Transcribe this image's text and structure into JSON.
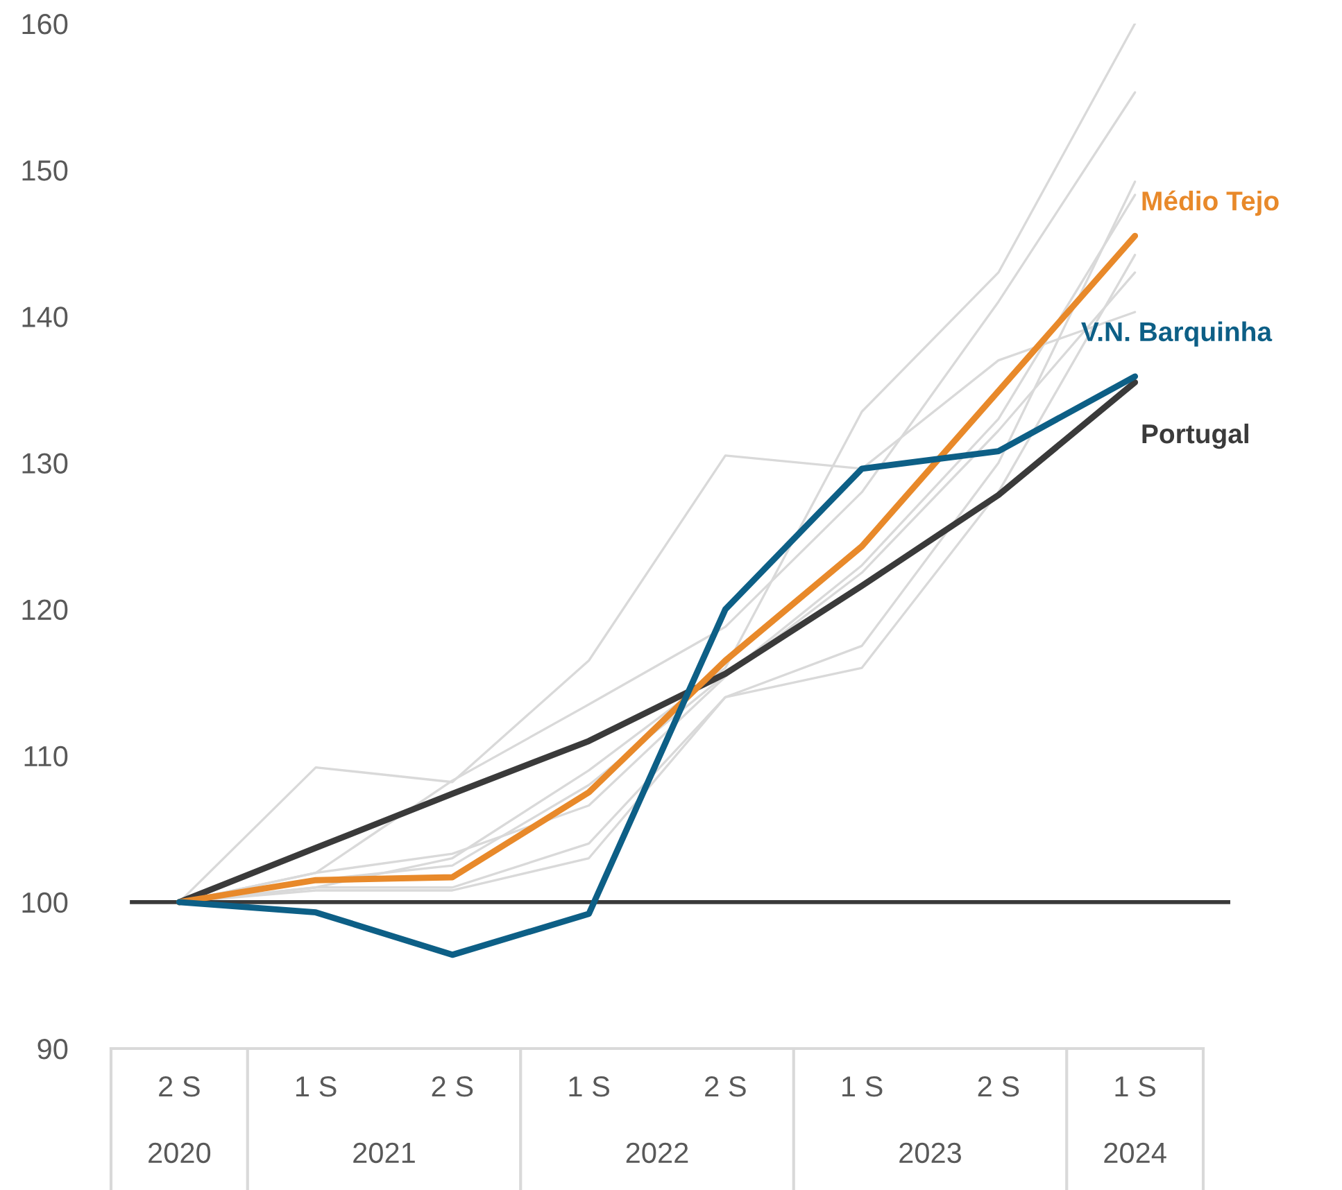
{
  "chart_data": {
    "type": "line",
    "categories": [
      "2 S",
      "1 S",
      "2 S",
      "1 S",
      "2 S",
      "1 S",
      "2 S",
      "1 S"
    ],
    "annotations": [
      "2020",
      "2021",
      "2022",
      "2023",
      "2024"
    ],
    "ylim": [
      90,
      160
    ],
    "yticks": [
      90,
      100,
      110,
      120,
      130,
      140,
      150,
      160
    ],
    "grid": false,
    "legend": false,
    "marker": "none",
    "line_style": "solid",
    "ref_lines": [
      {
        "axis": "y",
        "value": 100,
        "label": null,
        "color": "#3a3a3a"
      }
    ],
    "series": [
      {
        "color": "#d9d9d9",
        "values": [
          100,
          102.0,
          108.3,
          113.5,
          118.8,
          128.0,
          141.0,
          155.3
        ]
      },
      {
        "color": "#d9d9d9",
        "values": [
          100,
          101.0,
          103.0,
          109.0,
          116.0,
          133.5,
          143.0,
          160.0
        ]
      },
      {
        "color": "#d9d9d9",
        "values": [
          100,
          109.2,
          108.2,
          116.5,
          130.5,
          129.6,
          137.0,
          140.3
        ]
      },
      {
        "color": "#d9d9d9",
        "values": [
          100,
          101.0,
          101.0,
          104.0,
          114.0,
          117.5,
          130.0,
          149.2
        ]
      },
      {
        "color": "#d9d9d9",
        "values": [
          100,
          100.8,
          100.8,
          103.0,
          114.0,
          116.0,
          128.0,
          144.2
        ]
      },
      {
        "color": "#d9d9d9",
        "values": [
          100,
          101.5,
          102.5,
          108.0,
          115.5,
          123.0,
          133.0,
          148.3
        ]
      },
      {
        "color": "#d9d9d9",
        "values": [
          100,
          102.0,
          103.3,
          106.6,
          115.4,
          122.5,
          132.2,
          143.0
        ]
      },
      {
        "name": "Portugal",
        "color": "#3a3a3a",
        "values": [
          100,
          103.7,
          107.4,
          111.0,
          115.6,
          121.6,
          127.8,
          135.5
        ]
      },
      {
        "name": "Médio Tejo",
        "color": "#e8892a",
        "values": [
          100,
          101.5,
          101.7,
          107.5,
          116.5,
          124.3,
          134.9,
          145.5
        ]
      },
      {
        "name": "V.N. Barquinha",
        "color": "#0d5f86",
        "values": [
          100,
          99.3,
          96.4,
          99.2,
          120.0,
          129.6,
          130.8,
          135.9
        ]
      }
    ]
  }
}
